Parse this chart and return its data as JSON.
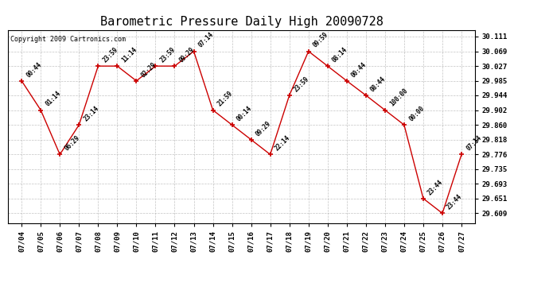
{
  "title": "Barometric Pressure Daily High 20090728",
  "copyright": "Copyright 2009 Cartronics.com",
  "x_labels": [
    "07/04",
    "07/05",
    "07/06",
    "07/07",
    "07/08",
    "07/09",
    "07/10",
    "07/11",
    "07/12",
    "07/13",
    "07/14",
    "07/15",
    "07/16",
    "07/17",
    "07/18",
    "07/19",
    "07/20",
    "07/21",
    "07/22",
    "07/23",
    "07/24",
    "07/25",
    "07/26",
    "07/27"
  ],
  "y_values": [
    29.985,
    29.902,
    29.776,
    29.86,
    30.027,
    30.027,
    29.985,
    30.027,
    30.027,
    30.069,
    29.902,
    29.86,
    29.818,
    29.776,
    29.944,
    30.069,
    30.027,
    29.985,
    29.944,
    29.902,
    29.86,
    29.651,
    29.609,
    29.776
  ],
  "point_labels": [
    "00:44",
    "01:14",
    "06:29",
    "23:14",
    "23:59",
    "11:14",
    "02:29",
    "23:59",
    "09:29",
    "07:14",
    "21:59",
    "00:14",
    "09:29",
    "22:14",
    "23:59",
    "09:59",
    "08:14",
    "00:44",
    "08:44",
    "100:00",
    "00:00",
    "23:44",
    "23:44",
    "07:14"
  ],
  "y_ticks": [
    29.609,
    29.651,
    29.693,
    29.735,
    29.776,
    29.818,
    29.86,
    29.902,
    29.944,
    29.985,
    30.027,
    30.069,
    30.111
  ],
  "ylim": [
    29.58,
    30.13
  ],
  "line_color": "#cc0000",
  "background_color": "#ffffff",
  "grid_color": "#aaaaaa",
  "title_fontsize": 11,
  "tick_fontsize": 6.5,
  "annot_fontsize": 5.5,
  "copyright_fontsize": 6
}
